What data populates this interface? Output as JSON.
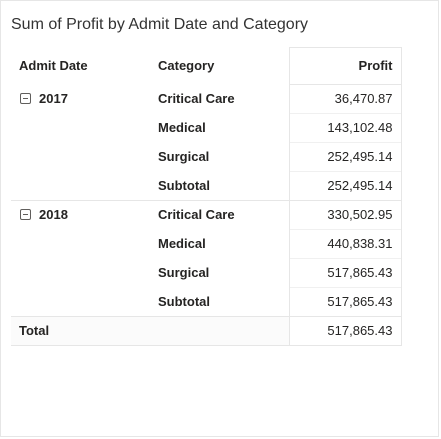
{
  "visual": {
    "title": "Sum of Profit by Admit Date and Category",
    "columns": {
      "date": "Admit Date",
      "category": "Category",
      "profit": "Profit"
    },
    "groups": [
      {
        "year": "2017",
        "rows": [
          {
            "category": "Critical Care",
            "profit": "36,470.87"
          },
          {
            "category": "Medical",
            "profit": "143,102.48"
          },
          {
            "category": "Surgical",
            "profit": "252,495.14"
          },
          {
            "category": "Subtotal",
            "profit": "252,495.14"
          }
        ]
      },
      {
        "year": "2018",
        "rows": [
          {
            "category": "Critical Care",
            "profit": "330,502.95"
          },
          {
            "category": "Medical",
            "profit": "440,838.31"
          },
          {
            "category": "Surgical",
            "profit": "517,865.43"
          },
          {
            "category": "Subtotal",
            "profit": "517,865.43"
          }
        ]
      }
    ],
    "total": {
      "label": "Total",
      "profit": "517,865.43"
    },
    "icons": {
      "expand": "collapse-minus-icon"
    },
    "colors": {
      "border": "#e6e6e6",
      "text": "#252423"
    }
  }
}
